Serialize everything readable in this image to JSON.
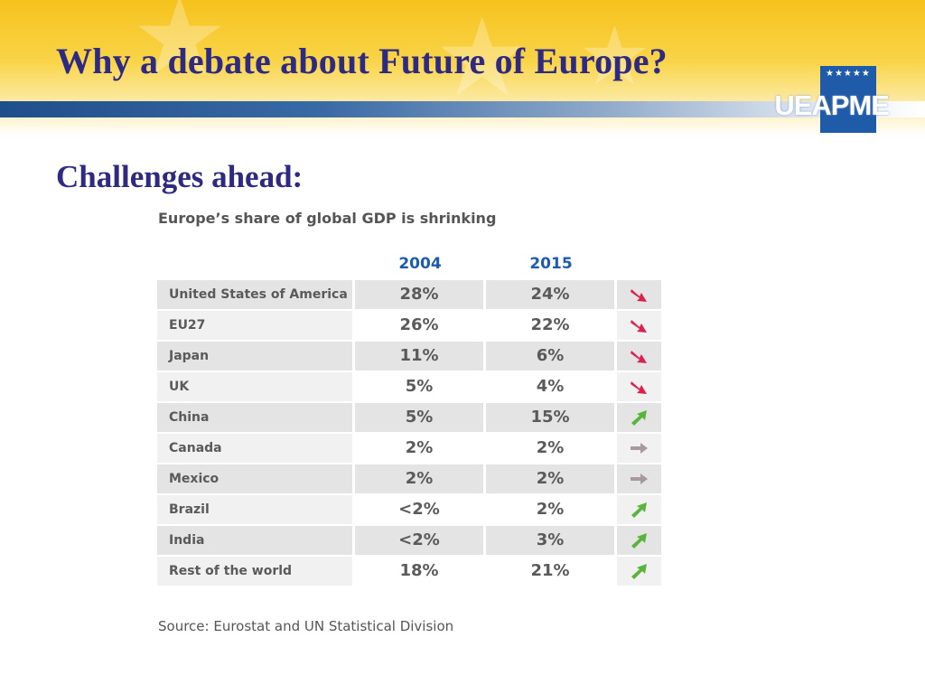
{
  "slide": {
    "title": "Why a debate about Future of Europe?",
    "heading": "Challenges ahead:",
    "logo_text": "UEAPME"
  },
  "table": {
    "title": "Europe’s share of global GDP is shrinking",
    "columns": [
      "2004",
      "2015"
    ],
    "rows": [
      {
        "name": "United States of America",
        "v2004": "28%",
        "v2015": "24%",
        "trend": "down"
      },
      {
        "name": "EU27",
        "v2004": "26%",
        "v2015": "22%",
        "trend": "down"
      },
      {
        "name": "Japan",
        "v2004": "11%",
        "v2015": "6%",
        "trend": "down"
      },
      {
        "name": "UK",
        "v2004": "5%",
        "v2015": "4%",
        "trend": "down"
      },
      {
        "name": "China",
        "v2004": "5%",
        "v2015": "15%",
        "trend": "up"
      },
      {
        "name": "Canada",
        "v2004": "2%",
        "v2015": "2%",
        "trend": "flat"
      },
      {
        "name": "Mexico",
        "v2004": "2%",
        "v2015": "2%",
        "trend": "flat"
      },
      {
        "name": "Brazil",
        "v2004": "<2%",
        "v2015": "2%",
        "trend": "up"
      },
      {
        "name": "India",
        "v2004": "<2%",
        "v2015": "3%",
        "trend": "up"
      },
      {
        "name": "Rest of the world",
        "v2004": "18%",
        "v2015": "21%",
        "trend": "up"
      }
    ],
    "source": "Source: Eurostat and UN Statistical Division"
  },
  "colors": {
    "title": "#2e2a84",
    "column_header": "#1c5bb0",
    "arrow_down": "#d8234f",
    "arrow_up": "#5ab43c",
    "arrow_flat": "#a89a9a",
    "logo_bg": "#1f5ba8"
  }
}
